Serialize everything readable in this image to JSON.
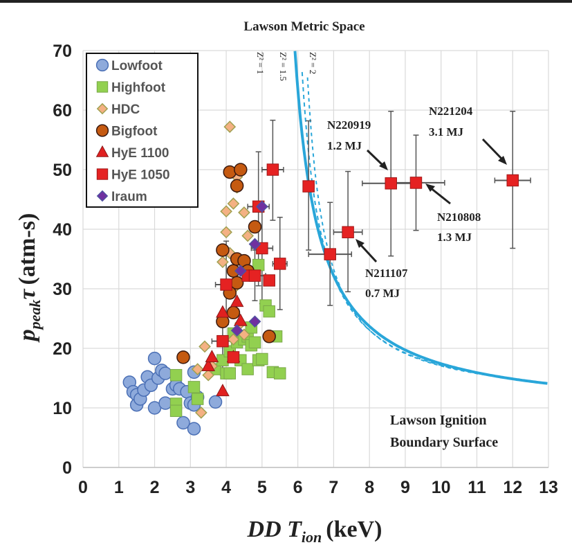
{
  "chart_data": {
    "type": "scatter",
    "title": "Lawson Metric Space",
    "xlabel": "DD T_ion (keV)",
    "xlabel_parts": {
      "main": "DD T",
      "sub": "ion",
      "unit": "(keV)"
    },
    "ylabel": "p_peak τ (atm-s)",
    "ylabel_parts": {
      "main": "p",
      "sub": "peak",
      "sym": "τ",
      "unit": "(atm-s)"
    },
    "xlim": [
      0,
      13
    ],
    "ylim": [
      0,
      70
    ],
    "xticks": [
      "0",
      "1",
      "2",
      "3",
      "4",
      "5",
      "6",
      "7",
      "8",
      "9",
      "10",
      "11",
      "12",
      "13"
    ],
    "yticks": [
      "0",
      "10",
      "20",
      "30",
      "40",
      "50",
      "60",
      "70"
    ],
    "grid": true,
    "legend_position": "top-left",
    "series": [
      {
        "name": "Lowfoot",
        "marker": "circle",
        "color": "#8eaadb",
        "edge": "#4a6fb5",
        "points": [
          [
            1.3,
            14.3
          ],
          [
            1.4,
            12.7
          ],
          [
            1.5,
            12.2
          ],
          [
            1.5,
            10.5
          ],
          [
            1.6,
            11.5
          ],
          [
            1.7,
            13
          ],
          [
            1.8,
            15.2
          ],
          [
            1.9,
            13.8
          ],
          [
            2.0,
            18.3
          ],
          [
            2.0,
            10.0
          ],
          [
            2.1,
            15
          ],
          [
            2.2,
            16.3
          ],
          [
            2.3,
            15.8
          ],
          [
            2.3,
            10.8
          ],
          [
            2.5,
            13.2
          ],
          [
            2.6,
            13.8
          ],
          [
            2.7,
            13.2
          ],
          [
            2.8,
            7.5
          ],
          [
            2.9,
            12.7
          ],
          [
            3.0,
            10.8
          ],
          [
            3.1,
            6.5
          ],
          [
            3.1,
            16
          ],
          [
            3.2,
            11.8
          ],
          [
            3.1,
            10.5
          ],
          [
            3.7,
            11
          ]
        ]
      },
      {
        "name": "Highfoot",
        "marker": "square",
        "color": "#92d050",
        "edge": "#7aa84a",
        "points": [
          [
            2.6,
            15.5
          ],
          [
            2.6,
            10.7
          ],
          [
            2.6,
            9.5
          ],
          [
            3.1,
            13.5
          ],
          [
            3.2,
            11.5
          ],
          [
            3.7,
            16.5
          ],
          [
            3.9,
            18
          ],
          [
            4.0,
            15.8
          ],
          [
            4.1,
            15.8
          ],
          [
            4.1,
            19.5
          ],
          [
            4.2,
            22.5
          ],
          [
            4.3,
            21
          ],
          [
            4.4,
            18
          ],
          [
            4.5,
            21.5
          ],
          [
            4.6,
            22
          ],
          [
            4.6,
            16.5
          ],
          [
            4.7,
            20.5
          ],
          [
            4.7,
            23.5
          ],
          [
            4.8,
            21
          ],
          [
            4.9,
            34
          ],
          [
            4.9,
            18
          ],
          [
            5.0,
            18.2
          ],
          [
            5.1,
            27.2
          ],
          [
            5.2,
            26.2
          ],
          [
            5.3,
            16
          ],
          [
            5.4,
            22
          ],
          [
            5.5,
            15.8
          ]
        ]
      },
      {
        "name": "HDC",
        "marker": "diamond",
        "color": "#f4b183",
        "edge": "#a0a050",
        "points": [
          [
            3.2,
            16.5
          ],
          [
            3.3,
            9.2
          ],
          [
            3.4,
            20.3
          ],
          [
            3.5,
            15.5
          ],
          [
            3.6,
            17
          ],
          [
            3.9,
            34.5
          ],
          [
            4.0,
            43
          ],
          [
            4.0,
            39.5
          ],
          [
            4.1,
            57.2
          ],
          [
            4.1,
            36
          ],
          [
            4.2,
            44.3
          ],
          [
            4.2,
            30
          ],
          [
            4.3,
            48.8
          ],
          [
            4.3,
            47
          ],
          [
            4.4,
            24.2
          ],
          [
            4.5,
            22.3
          ],
          [
            4.5,
            42.8
          ],
          [
            4.6,
            38.9
          ],
          [
            4.2,
            21.5
          ]
        ]
      },
      {
        "name": "Bigfoot",
        "marker": "circle",
        "color": "#c55a11",
        "edge": "#3a1a10",
        "points": [
          [
            2.8,
            18.5
          ],
          [
            3.9,
            36.5
          ],
          [
            3.9,
            24.5
          ],
          [
            4.1,
            49.6
          ],
          [
            4.1,
            29.3
          ],
          [
            4.2,
            33
          ],
          [
            4.3,
            47.3
          ],
          [
            4.3,
            35
          ],
          [
            4.3,
            31
          ],
          [
            4.4,
            50
          ],
          [
            4.5,
            34.7
          ],
          [
            4.6,
            33
          ],
          [
            4.8,
            40.4
          ],
          [
            5.2,
            22
          ],
          [
            4.2,
            26
          ]
        ]
      },
      {
        "name": "HyE 1100",
        "marker": "triangle",
        "color": "#e02020",
        "edge": "#8b1a1a",
        "points": [
          [
            3.5,
            17
          ],
          [
            3.6,
            18.5
          ],
          [
            3.9,
            26
          ],
          [
            3.9,
            12.8
          ],
          [
            4.2,
            18.5
          ],
          [
            4.3,
            27.8
          ],
          [
            4.4,
            24.6
          ]
        ]
      },
      {
        "name": "HyE 1050",
        "marker": "square",
        "color": "#e52222",
        "edge": "#a01818",
        "points": [
          [
            3.9,
            21.2
          ],
          [
            4.0,
            30.7
          ],
          [
            4.2,
            18.5
          ],
          [
            4.6,
            32.2
          ],
          [
            4.8,
            32.2
          ],
          [
            4.9,
            43.8
          ],
          [
            5.0,
            36.8
          ],
          [
            5.2,
            31.4
          ],
          [
            5.3,
            50
          ],
          [
            5.5,
            34.2
          ],
          [
            6.3,
            47.2
          ],
          [
            6.9,
            35.8
          ],
          [
            7.4,
            39.5
          ],
          [
            8.6,
            47.7
          ],
          [
            9.3,
            47.8
          ],
          [
            12.0,
            48.2
          ]
        ]
      },
      {
        "name": "Iraum",
        "marker": "diamond",
        "color": "#7030a0",
        "edge": "#5050a0",
        "points": [
          [
            4.3,
            23
          ],
          [
            4.4,
            33
          ],
          [
            4.8,
            24.5
          ],
          [
            4.8,
            37.5
          ],
          [
            5.0,
            43.8
          ]
        ]
      }
    ],
    "error_bars": [
      {
        "x": 5.3,
        "y": 50,
        "xerr": 0.3,
        "ylo": 41.5,
        "yhi": 58.3
      },
      {
        "x": 4.9,
        "y": 43.8,
        "xerr": 0.3,
        "ylo": 30.5,
        "yhi": 53
      },
      {
        "x": 5.0,
        "y": 36.8,
        "xerr": 0.3,
        "ylo": 27.5,
        "yhi": 43.5
      },
      {
        "x": 5.5,
        "y": 34.2,
        "xerr": 0.2,
        "ylo": 26.5,
        "yhi": 42
      },
      {
        "x": 4.8,
        "y": 32.2,
        "xerr": 0.3,
        "ylo": 28,
        "yhi": 36.5
      },
      {
        "x": 4.0,
        "y": 30.7,
        "xerr": 0.3,
        "ylo": 24,
        "yhi": 38
      },
      {
        "x": 3.9,
        "y": 21.2,
        "xerr": 0.3,
        "ylo": 15.5,
        "yhi": 26
      },
      {
        "x": 6.3,
        "y": 47.2,
        "xerr": 0.15,
        "ylo": 36.5,
        "yhi": 58.2
      },
      {
        "x": 6.9,
        "y": 35.8,
        "xerr": 0.6,
        "ylo": 27.2,
        "yhi": 44.5
      },
      {
        "x": 7.4,
        "y": 39.5,
        "xerr": 0.4,
        "ylo": 29.5,
        "yhi": 49.7
      },
      {
        "x": 8.6,
        "y": 47.7,
        "xerr": 0.8,
        "ylo": 35.5,
        "yhi": 59.8
      },
      {
        "x": 9.3,
        "y": 47.8,
        "xerr": 0.8,
        "ylo": 39.8,
        "yhi": 55.8
      },
      {
        "x": 12.0,
        "y": 48.2,
        "xerr": 0.5,
        "ylo": 36.8,
        "yhi": 59.8
      }
    ],
    "curves": [
      {
        "name": "Z^2 = 1",
        "label": "Z̅²̅ = 1",
        "style": "solid",
        "color": "#29a6d9",
        "k": 160
      },
      {
        "name": "Z^2 = 1.5",
        "label": "Z̅²̅ = 1.5",
        "style": "dashed",
        "color": "#29a6d9",
        "k": 0
      },
      {
        "name": "Z^2 = 2",
        "label": "Z̅²̅ = 2",
        "style": "dashed",
        "color": "#29a6d9",
        "k": 0
      }
    ],
    "curve_labels": [
      "Z² = 1",
      "Z² = 1.5",
      "Z² = 2"
    ],
    "annotations": [
      {
        "id": "N220919",
        "line1": "N220919",
        "line2": "1.2 MJ",
        "target": [
          8.6,
          47.7
        ]
      },
      {
        "id": "N221204",
        "line1": "N221204",
        "line2": "3.1 MJ",
        "target": [
          12.0,
          48.2
        ]
      },
      {
        "id": "N210808",
        "line1": "N210808",
        "line2": "1.3 MJ",
        "target": [
          9.3,
          47.8
        ]
      },
      {
        "id": "N211107",
        "line1": "N211107",
        "line2": "0.7 MJ",
        "target": [
          7.4,
          39.5
        ]
      }
    ],
    "boundary_label": [
      "Lawson Ignition",
      "Boundary Surface"
    ]
  }
}
